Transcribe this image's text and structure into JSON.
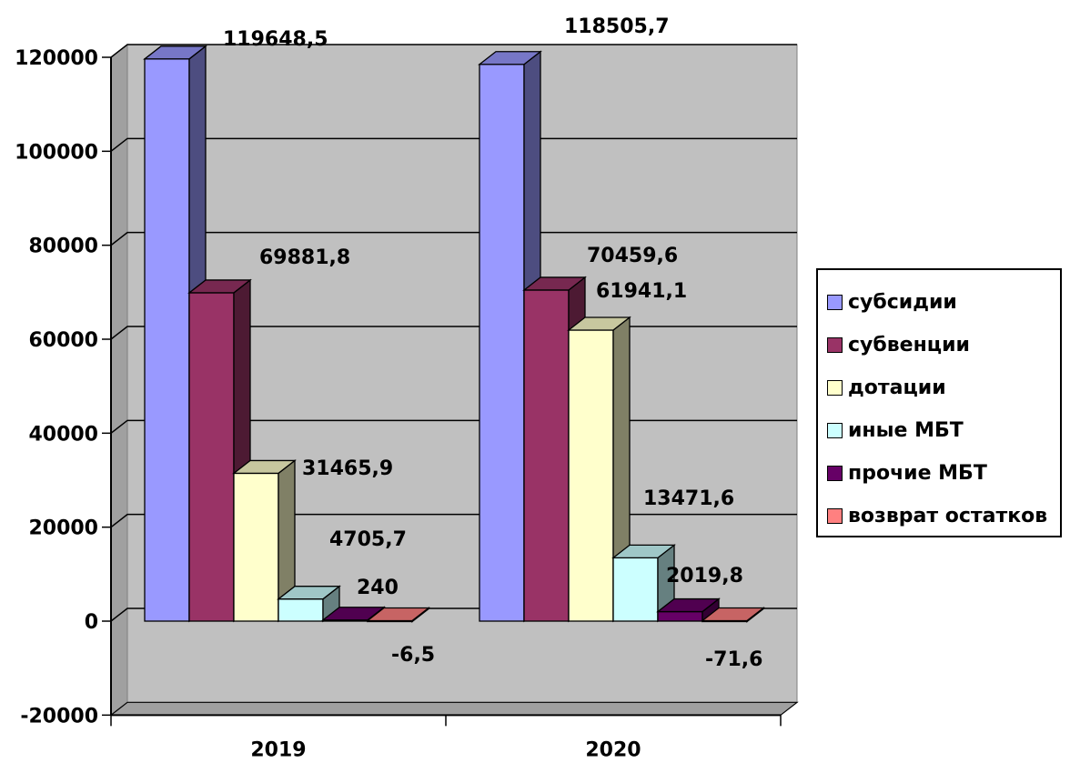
{
  "chart_data": {
    "type": "bar",
    "categories": [
      "2019",
      "2020"
    ],
    "series": [
      {
        "name": "субсидии",
        "values": [
          119648.5,
          118505.7
        ],
        "labels": [
          "119648,5",
          "118505,7"
        ],
        "color": "#9999ff"
      },
      {
        "name": "субвенции",
        "values": [
          69881.8,
          70459.6
        ],
        "labels": [
          "69881,8",
          "70459,6"
        ],
        "color": "#993366"
      },
      {
        "name": "дотации",
        "values": [
          31465.9,
          61941.1
        ],
        "labels": [
          "31465,9",
          "61941,1"
        ],
        "color": "#ffffcc"
      },
      {
        "name": "иные МБТ",
        "values": [
          4705.7,
          13471.6
        ],
        "labels": [
          "4705,7",
          "13471,6"
        ],
        "color": "#ccffff"
      },
      {
        "name": "прочие МБТ",
        "values": [
          240,
          2019.8
        ],
        "labels": [
          "240",
          "2019,8"
        ],
        "color": "#660066"
      },
      {
        "name": "возврат остатков",
        "values": [
          -6.5,
          -71.6
        ],
        "labels": [
          "-6,5",
          "-71,6"
        ],
        "color": "#ff8080"
      }
    ],
    "y_ticks": [
      "-20000",
      "0",
      "20000",
      "40000",
      "60000",
      "80000",
      "100000",
      "120000"
    ],
    "ylim": [
      -20000,
      120000
    ],
    "grid": true,
    "legend_position": "right",
    "style": "3d-clustered-column"
  }
}
